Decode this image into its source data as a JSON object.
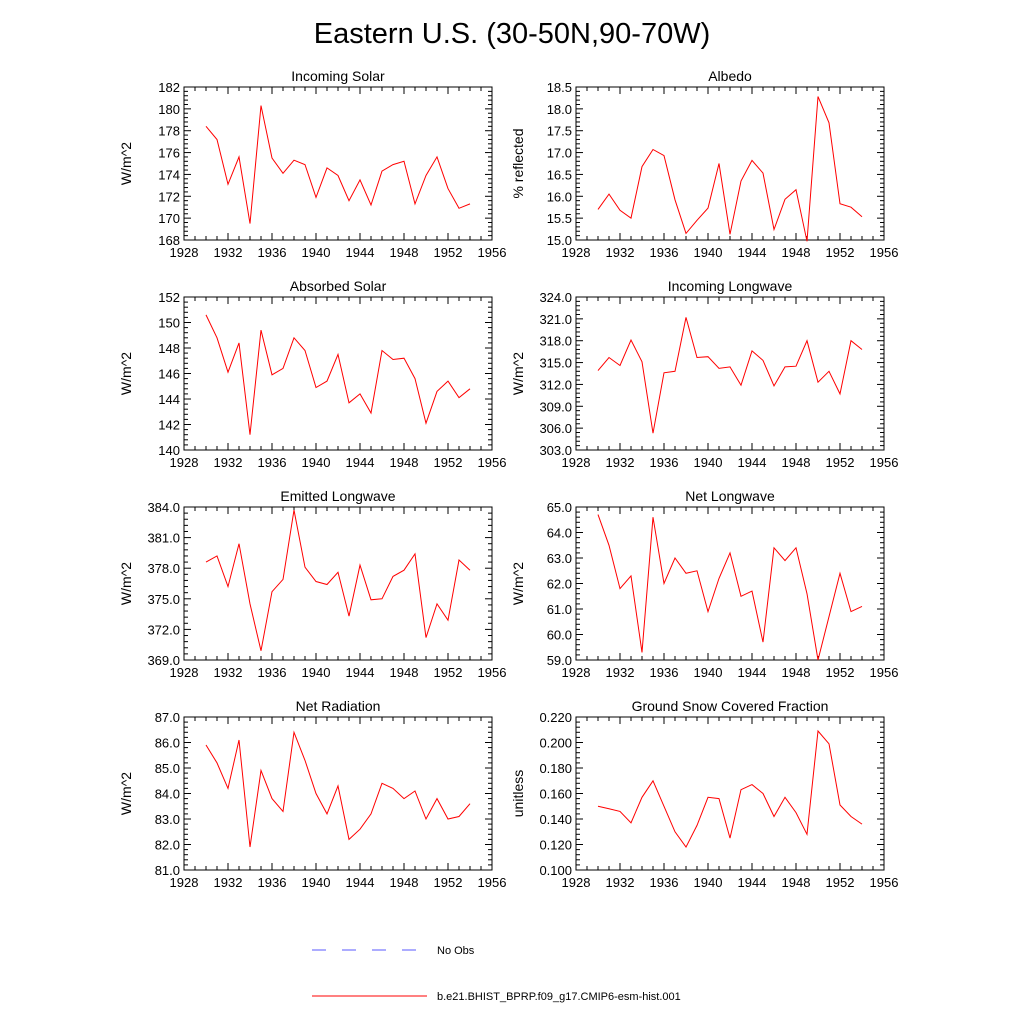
{
  "figure": {
    "title": "Eastern U.S. (30-50N,90-70W)",
    "legend": [
      {
        "label": "No Obs",
        "color": "#5a5aff",
        "style": "dashed"
      },
      {
        "label": "b.e21.BHIST_BPRP.f09_g17.CMIP6-esm-hist.001",
        "color": "#ff0000",
        "style": "solid"
      }
    ]
  },
  "chart_data": [
    {
      "type": "line",
      "title": "Incoming Solar",
      "xlabel": "",
      "ylabel": "W/m^2",
      "xlim": [
        1928,
        1956
      ],
      "xticks": [
        1928,
        1932,
        1936,
        1940,
        1944,
        1948,
        1952,
        1956
      ],
      "ylim": [
        168,
        182
      ],
      "yticks": [
        168,
        170,
        172,
        174,
        176,
        178,
        180,
        182
      ],
      "yfmt": 0,
      "x": [
        1930,
        1931,
        1932,
        1933,
        1934,
        1935,
        1936,
        1937,
        1938,
        1939,
        1940,
        1941,
        1942,
        1943,
        1944,
        1945,
        1946,
        1947,
        1948,
        1949,
        1950,
        1951,
        1952,
        1953,
        1954
      ],
      "series": [
        {
          "name": "b.e21.BHIST_BPRP.f09_g17.CMIP6-esm-hist.001",
          "color": "#ff0000",
          "values": [
            178.4,
            177.2,
            173.1,
            175.6,
            169.5,
            180.3,
            175.5,
            174.1,
            175.3,
            174.9,
            171.9,
            174.6,
            173.9,
            171.6,
            173.5,
            171.2,
            174.3,
            174.9,
            175.2,
            171.3,
            173.9,
            175.6,
            172.7,
            170.9,
            171.3
          ]
        }
      ]
    },
    {
      "type": "line",
      "title": "Albedo",
      "xlabel": "",
      "ylabel": "% reflected",
      "xlim": [
        1928,
        1956
      ],
      "xticks": [
        1928,
        1932,
        1936,
        1940,
        1944,
        1948,
        1952,
        1956
      ],
      "ylim": [
        15.0,
        18.5
      ],
      "yticks": [
        15.0,
        15.5,
        16.0,
        16.5,
        17.0,
        17.5,
        18.0,
        18.5
      ],
      "yfmt": 1,
      "x": [
        1930,
        1931,
        1932,
        1933,
        1934,
        1935,
        1936,
        1937,
        1938,
        1939,
        1940,
        1941,
        1942,
        1943,
        1944,
        1945,
        1946,
        1947,
        1948,
        1949,
        1950,
        1951,
        1952,
        1953,
        1954
      ],
      "series": [
        {
          "name": "b.e21.BHIST_BPRP.f09_g17.CMIP6-esm-hist.001",
          "color": "#ff0000",
          "values": [
            15.7,
            16.05,
            15.68,
            15.5,
            16.68,
            17.07,
            16.93,
            15.92,
            15.15,
            15.45,
            15.73,
            16.75,
            15.13,
            16.35,
            16.82,
            16.53,
            15.24,
            15.93,
            16.15,
            14.97,
            18.28,
            17.68,
            15.83,
            15.75,
            15.53
          ]
        }
      ]
    },
    {
      "type": "line",
      "title": "Absorbed Solar",
      "xlabel": "",
      "ylabel": "W/m^2",
      "xlim": [
        1928,
        1956
      ],
      "xticks": [
        1928,
        1932,
        1936,
        1940,
        1944,
        1948,
        1952,
        1956
      ],
      "ylim": [
        140,
        152
      ],
      "yticks": [
        140,
        142,
        144,
        146,
        148,
        150,
        152
      ],
      "yfmt": 0,
      "x": [
        1930,
        1931,
        1932,
        1933,
        1934,
        1935,
        1936,
        1937,
        1938,
        1939,
        1940,
        1941,
        1942,
        1943,
        1944,
        1945,
        1946,
        1947,
        1948,
        1949,
        1950,
        1951,
        1952,
        1953,
        1954
      ],
      "series": [
        {
          "name": "b.e21.BHIST_BPRP.f09_g17.CMIP6-esm-hist.001",
          "color": "#ff0000",
          "values": [
            150.6,
            148.8,
            146.1,
            148.4,
            141.2,
            149.4,
            145.9,
            146.4,
            148.8,
            147.8,
            144.9,
            145.4,
            147.5,
            143.7,
            144.4,
            142.9,
            147.8,
            147.1,
            147.2,
            145.6,
            142.1,
            144.6,
            145.4,
            144.1,
            144.8
          ]
        }
      ]
    },
    {
      "type": "line",
      "title": "Incoming Longwave",
      "xlabel": "",
      "ylabel": "W/m^2",
      "xlim": [
        1928,
        1956
      ],
      "xticks": [
        1928,
        1932,
        1936,
        1940,
        1944,
        1948,
        1952,
        1956
      ],
      "ylim": [
        303.0,
        324.0
      ],
      "yticks": [
        303.0,
        306.0,
        309.0,
        312.0,
        315.0,
        318.0,
        321.0,
        324.0
      ],
      "yfmt": 1,
      "x": [
        1930,
        1931,
        1932,
        1933,
        1934,
        1935,
        1936,
        1937,
        1938,
        1939,
        1940,
        1941,
        1942,
        1943,
        1944,
        1945,
        1946,
        1947,
        1948,
        1949,
        1950,
        1951,
        1952,
        1953,
        1954
      ],
      "series": [
        {
          "name": "b.e21.BHIST_BPRP.f09_g17.CMIP6-esm-hist.001",
          "color": "#ff0000",
          "values": [
            313.9,
            315.7,
            314.6,
            318.1,
            315.1,
            305.3,
            313.6,
            313.8,
            321.2,
            315.7,
            315.8,
            314.2,
            314.4,
            311.9,
            316.6,
            315.3,
            311.8,
            314.4,
            314.5,
            318.0,
            312.3,
            313.8,
            310.7,
            318.0,
            316.8
          ]
        }
      ]
    },
    {
      "type": "line",
      "title": "Emitted Longwave",
      "xlabel": "",
      "ylabel": "W/m^2",
      "xlim": [
        1928,
        1956
      ],
      "xticks": [
        1928,
        1932,
        1936,
        1940,
        1944,
        1948,
        1952,
        1956
      ],
      "ylim": [
        369.0,
        384.0
      ],
      "yticks": [
        369.0,
        372.0,
        375.0,
        378.0,
        381.0,
        384.0
      ],
      "yfmt": 1,
      "x": [
        1930,
        1931,
        1932,
        1933,
        1934,
        1935,
        1936,
        1937,
        1938,
        1939,
        1940,
        1941,
        1942,
        1943,
        1944,
        1945,
        1946,
        1947,
        1948,
        1949,
        1950,
        1951,
        1952,
        1953,
        1954
      ],
      "series": [
        {
          "name": "b.e21.BHIST_BPRP.f09_g17.CMIP6-esm-hist.001",
          "color": "#ff0000",
          "values": [
            378.6,
            379.2,
            376.2,
            380.4,
            374.5,
            369.9,
            375.7,
            376.9,
            383.7,
            378.1,
            376.7,
            376.4,
            377.6,
            373.3,
            378.3,
            374.9,
            375.0,
            377.2,
            377.8,
            379.4,
            371.2,
            374.5,
            372.9,
            378.8,
            377.8
          ]
        }
      ]
    },
    {
      "type": "line",
      "title": "Net Longwave",
      "xlabel": "",
      "ylabel": "W/m^2",
      "xlim": [
        1928,
        1956
      ],
      "xticks": [
        1928,
        1932,
        1936,
        1940,
        1944,
        1948,
        1952,
        1956
      ],
      "ylim": [
        59.0,
        65.0
      ],
      "yticks": [
        59.0,
        60.0,
        61.0,
        62.0,
        63.0,
        64.0,
        65.0
      ],
      "yfmt": 1,
      "x": [
        1930,
        1931,
        1932,
        1933,
        1934,
        1935,
        1936,
        1937,
        1938,
        1939,
        1940,
        1941,
        1942,
        1943,
        1944,
        1945,
        1946,
        1947,
        1948,
        1949,
        1950,
        1951,
        1952,
        1953,
        1954
      ],
      "series": [
        {
          "name": "b.e21.BHIST_BPRP.f09_g17.CMIP6-esm-hist.001",
          "color": "#ff0000",
          "values": [
            64.7,
            63.5,
            61.8,
            62.3,
            59.3,
            64.6,
            62.0,
            63.0,
            62.4,
            62.5,
            60.9,
            62.2,
            63.2,
            61.5,
            61.7,
            59.7,
            63.4,
            62.9,
            63.4,
            61.6,
            59.0,
            60.7,
            62.4,
            60.9,
            61.1
          ]
        }
      ]
    },
    {
      "type": "line",
      "title": "Net Radiation",
      "xlabel": "",
      "ylabel": "W/m^2",
      "xlim": [
        1928,
        1956
      ],
      "xticks": [
        1928,
        1932,
        1936,
        1940,
        1944,
        1948,
        1952,
        1956
      ],
      "ylim": [
        81.0,
        87.0
      ],
      "yticks": [
        81.0,
        82.0,
        83.0,
        84.0,
        85.0,
        86.0,
        87.0
      ],
      "yfmt": 1,
      "x": [
        1930,
        1931,
        1932,
        1933,
        1934,
        1935,
        1936,
        1937,
        1938,
        1939,
        1940,
        1941,
        1942,
        1943,
        1944,
        1945,
        1946,
        1947,
        1948,
        1949,
        1950,
        1951,
        1952,
        1953,
        1954
      ],
      "series": [
        {
          "name": "b.e21.BHIST_BPRP.f09_g17.CMIP6-esm-hist.001",
          "color": "#ff0000",
          "values": [
            85.9,
            85.2,
            84.2,
            86.1,
            81.9,
            84.9,
            83.8,
            83.3,
            86.4,
            85.3,
            84.0,
            83.2,
            84.3,
            82.2,
            82.6,
            83.2,
            84.4,
            84.2,
            83.8,
            84.1,
            83.0,
            83.8,
            83.0,
            83.1,
            83.6
          ]
        }
      ]
    },
    {
      "type": "line",
      "title": "Ground Snow Covered Fraction",
      "xlabel": "",
      "ylabel": "unitless",
      "xlim": [
        1928,
        1956
      ],
      "xticks": [
        1928,
        1932,
        1936,
        1940,
        1944,
        1948,
        1952,
        1956
      ],
      "ylim": [
        0.1,
        0.22
      ],
      "yticks": [
        0.1,
        0.12,
        0.14,
        0.16,
        0.18,
        0.2,
        0.22
      ],
      "yfmt": 3,
      "x": [
        1930,
        1931,
        1932,
        1933,
        1934,
        1935,
        1936,
        1937,
        1938,
        1939,
        1940,
        1941,
        1942,
        1943,
        1944,
        1945,
        1946,
        1947,
        1948,
        1949,
        1950,
        1951,
        1952,
        1953,
        1954
      ],
      "series": [
        {
          "name": "b.e21.BHIST_BPRP.f09_g17.CMIP6-esm-hist.001",
          "color": "#ff0000",
          "values": [
            0.15,
            0.148,
            0.146,
            0.137,
            0.157,
            0.17,
            0.15,
            0.13,
            0.118,
            0.135,
            0.157,
            0.156,
            0.125,
            0.163,
            0.167,
            0.16,
            0.142,
            0.157,
            0.145,
            0.128,
            0.209,
            0.199,
            0.151,
            0.142,
            0.136
          ]
        }
      ]
    }
  ]
}
